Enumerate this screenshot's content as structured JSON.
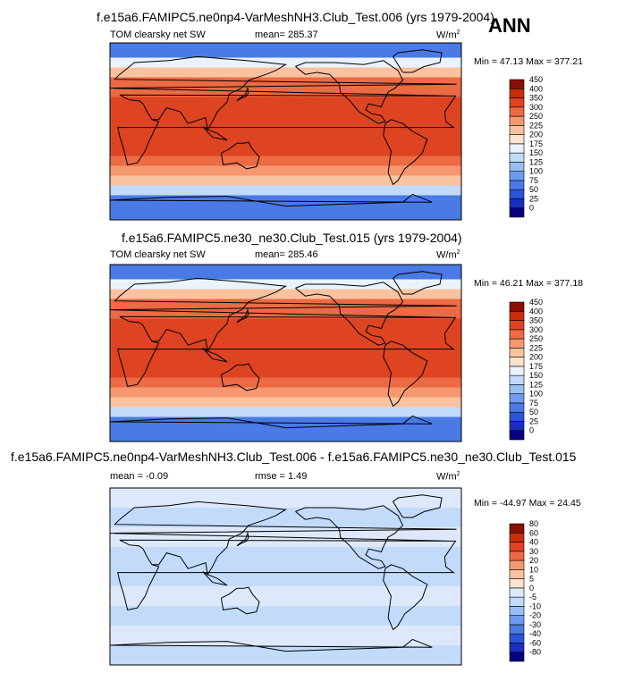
{
  "season": "ANN",
  "panels": [
    {
      "title": "f.e15a6.FAMIPC5.ne0np4-VarMeshNH3.Club_Test.006 (yrs 1979-2004)",
      "left_label": "TOM clearsky net SW",
      "mean_text": "mean= 285.37",
      "rmse_text": "",
      "units": "W/m",
      "units_exp": "2",
      "minmax": "Min = 47.13 Max = 377.21"
    },
    {
      "title": "f.e15a6.FAMIPC5.ne30_ne30.Club_Test.015 (yrs 1979-2004)",
      "left_label": "TOM clearsky net SW",
      "mean_text": "mean= 285.46",
      "rmse_text": "",
      "units": "W/m",
      "units_exp": "2",
      "minmax": "Min = 46.21 Max = 377.18"
    },
    {
      "title": "f.e15a6.FAMIPC5.ne0np4-VarMeshNH3.Club_Test.006 - f.e15a6.FAMIPC5.ne30_ne30.Club_Test.015",
      "left_label": "mean = -0.09",
      "mean_text": "",
      "rmse_text": "rmse = 1.49",
      "units": "W/m",
      "units_exp": "2",
      "minmax": "Min = -44.97 Max = 24.45"
    }
  ],
  "chart_data": [
    {
      "type": "heatmap",
      "title": "f.e15a6.FAMIPC5.ne0np4-VarMeshNH3.Club_Test.006 (yrs 1979-2004)",
      "variable": "TOM clearsky net SW",
      "mean": 285.37,
      "min": 47.13,
      "max": 377.21,
      "colorbar_levels": [
        0,
        25,
        50,
        75,
        100,
        125,
        150,
        175,
        200,
        225,
        250,
        300,
        350,
        400,
        450
      ],
      "colorbar_colors": [
        "#070080",
        "#1a2fbf",
        "#2a55d8",
        "#4a7ae6",
        "#6e9bf0",
        "#97bff5",
        "#c2dbfa",
        "#eaf3fc",
        "#fde3cc",
        "#fbc2a0",
        "#f59870",
        "#ec6a44",
        "#de4422",
        "#c82d0c",
        "#8a0f04"
      ],
      "zonal_band_values": [
        {
          "lat": 80,
          "value": 75
        },
        {
          "lat": 70,
          "value": 175
        },
        {
          "lat": 60,
          "value": 240
        },
        {
          "lat": 50,
          "value": 300
        },
        {
          "lat": 40,
          "value": 340
        },
        {
          "lat": 30,
          "value": 360
        },
        {
          "lat": 10,
          "value": 370
        },
        {
          "lat": 0,
          "value": 365
        },
        {
          "lat": -10,
          "value": 365
        },
        {
          "lat": -20,
          "value": 355
        },
        {
          "lat": -30,
          "value": 330
        },
        {
          "lat": -40,
          "value": 290
        },
        {
          "lat": -50,
          "value": 230
        },
        {
          "lat": -60,
          "value": 170
        },
        {
          "lat": -70,
          "value": 75
        }
      ]
    },
    {
      "type": "heatmap",
      "title": "f.e15a6.FAMIPC5.ne30_ne30.Club_Test.015 (yrs 1979-2004)",
      "variable": "TOM clearsky net SW",
      "mean": 285.46,
      "min": 46.21,
      "max": 377.18,
      "colorbar_levels": [
        0,
        25,
        50,
        75,
        100,
        125,
        150,
        175,
        200,
        225,
        250,
        300,
        350,
        400,
        450
      ],
      "colorbar_colors": [
        "#070080",
        "#1a2fbf",
        "#2a55d8",
        "#4a7ae6",
        "#6e9bf0",
        "#97bff5",
        "#c2dbfa",
        "#eaf3fc",
        "#fde3cc",
        "#fbc2a0",
        "#f59870",
        "#ec6a44",
        "#de4422",
        "#c82d0c",
        "#8a0f04"
      ],
      "zonal_band_values": [
        {
          "lat": 80,
          "value": 75
        },
        {
          "lat": 70,
          "value": 175
        },
        {
          "lat": 60,
          "value": 240
        },
        {
          "lat": 50,
          "value": 300
        },
        {
          "lat": 40,
          "value": 340
        },
        {
          "lat": 30,
          "value": 360
        },
        {
          "lat": 10,
          "value": 370
        },
        {
          "lat": 0,
          "value": 365
        },
        {
          "lat": -10,
          "value": 365
        },
        {
          "lat": -20,
          "value": 355
        },
        {
          "lat": -30,
          "value": 330
        },
        {
          "lat": -40,
          "value": 290
        },
        {
          "lat": -50,
          "value": 230
        },
        {
          "lat": -60,
          "value": 170
        },
        {
          "lat": -70,
          "value": 75
        }
      ]
    },
    {
      "type": "heatmap",
      "title": "f.e15a6.FAMIPC5.ne0np4-VarMeshNH3.Club_Test.006 - f.e15a6.FAMIPC5.ne30_ne30.Club_Test.015",
      "mean": -0.09,
      "rmse": 1.49,
      "min": -44.97,
      "max": 24.45,
      "colorbar_levels": [
        -80,
        -60,
        -40,
        -30,
        -20,
        -10,
        -5,
        0,
        5,
        10,
        20,
        30,
        40,
        60,
        80
      ],
      "colorbar_colors": [
        "#070080",
        "#1a2fbf",
        "#2a55d8",
        "#4a7ae6",
        "#6e9bf0",
        "#97bff5",
        "#c2dbfa",
        "#dde9fa",
        "#fde3cc",
        "#fbc2a0",
        "#f59870",
        "#ec6a44",
        "#de4422",
        "#c82d0c",
        "#8a0f04"
      ],
      "zonal_band_values": [
        {
          "lat": 80,
          "value": 2
        },
        {
          "lat": 60,
          "value": -2
        },
        {
          "lat": 40,
          "value": 2
        },
        {
          "lat": 20,
          "value": -2
        },
        {
          "lat": 0,
          "value": -2
        },
        {
          "lat": -20,
          "value": 2
        },
        {
          "lat": -40,
          "value": -2
        },
        {
          "lat": -60,
          "value": 2
        },
        {
          "lat": -80,
          "value": -2
        }
      ]
    }
  ]
}
